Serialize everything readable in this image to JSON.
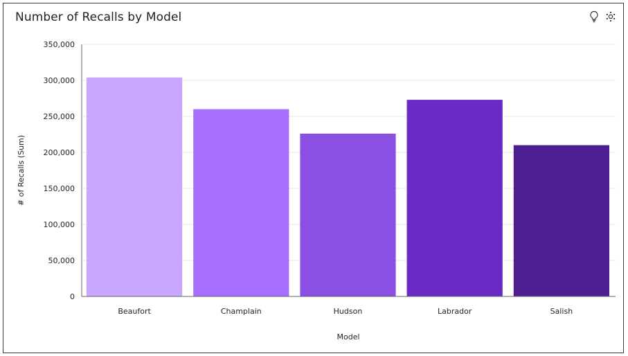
{
  "header": {
    "title": "Number of Recalls by Model",
    "icons": [
      "lightbulb-icon",
      "settings-icon"
    ]
  },
  "colors": {
    "bars": [
      "#c8a6fe",
      "#a56efc",
      "#8a4fe3",
      "#6929c4",
      "#4d1f91"
    ],
    "gridline": "#e6e6e6",
    "axis": "#666666"
  },
  "chart_data": {
    "type": "bar",
    "title": "Number of Recalls by Model",
    "xlabel": "Model",
    "ylabel": "# of Recalls (Sum)",
    "categories": [
      "Beaufort",
      "Champlain",
      "Hudson",
      "Labrador",
      "Salish"
    ],
    "values": [
      304000,
      260000,
      226000,
      273000,
      210000
    ],
    "ylim": [
      0,
      350000
    ],
    "yticks": [
      0,
      50000,
      100000,
      150000,
      200000,
      250000,
      300000,
      350000
    ],
    "ytick_labels": [
      "0",
      "50,000",
      "100,000",
      "150,000",
      "200,000",
      "250,000",
      "300,000",
      "350,000"
    ],
    "grid": true,
    "legend": "none"
  }
}
